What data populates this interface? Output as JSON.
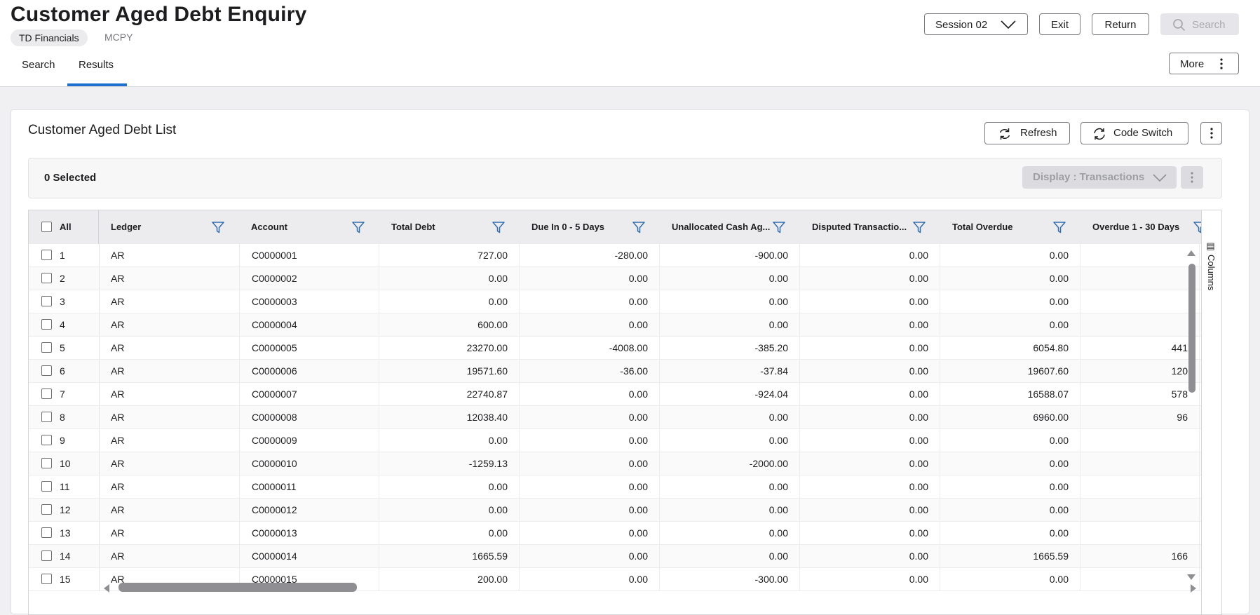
{
  "header": {
    "title": "Customer Aged Debt Enquiry",
    "company": "TD Financials",
    "company_code": "MCPY",
    "tabs": [
      "Search",
      "Results"
    ],
    "session_label": "Session 02",
    "exit_label": "Exit",
    "return_label": "Return",
    "search_label": "Search",
    "more_label": "More"
  },
  "panel": {
    "title": "Customer Aged Debt List",
    "refresh_label": "Refresh",
    "code_switch_label": "Code Switch",
    "selected_text": "0 Selected",
    "display_label": "Display : Transactions",
    "columns_tool_label": "Columns"
  },
  "grid": {
    "all_label": "All",
    "columns": [
      "Ledger",
      "Account",
      "Total Debt",
      "Due In 0 - 5 Days",
      "Unallocated Cash Ag...",
      "Disputed Transactio...",
      "Total Overdue",
      "Overdue 1 - 30 Days"
    ],
    "rows": [
      {
        "n": "1",
        "ledger": "AR",
        "account": "C0000001",
        "total_debt": "727.00",
        "due_0_5": "-280.00",
        "unalloc": "-900.00",
        "disputed": "0.00",
        "total_overdue": "0.00",
        "overdue_1_30": ""
      },
      {
        "n": "2",
        "ledger": "AR",
        "account": "C0000002",
        "total_debt": "0.00",
        "due_0_5": "0.00",
        "unalloc": "0.00",
        "disputed": "0.00",
        "total_overdue": "0.00",
        "overdue_1_30": ""
      },
      {
        "n": "3",
        "ledger": "AR",
        "account": "C0000003",
        "total_debt": "0.00",
        "due_0_5": "0.00",
        "unalloc": "0.00",
        "disputed": "0.00",
        "total_overdue": "0.00",
        "overdue_1_30": ""
      },
      {
        "n": "4",
        "ledger": "AR",
        "account": "C0000004",
        "total_debt": "600.00",
        "due_0_5": "0.00",
        "unalloc": "0.00",
        "disputed": "0.00",
        "total_overdue": "0.00",
        "overdue_1_30": ""
      },
      {
        "n": "5",
        "ledger": "AR",
        "account": "C0000005",
        "total_debt": "23270.00",
        "due_0_5": "-4008.00",
        "unalloc": "-385.20",
        "disputed": "0.00",
        "total_overdue": "6054.80",
        "overdue_1_30": "441"
      },
      {
        "n": "6",
        "ledger": "AR",
        "account": "C0000006",
        "total_debt": "19571.60",
        "due_0_5": "-36.00",
        "unalloc": "-37.84",
        "disputed": "0.00",
        "total_overdue": "19607.60",
        "overdue_1_30": "120"
      },
      {
        "n": "7",
        "ledger": "AR",
        "account": "C0000007",
        "total_debt": "22740.87",
        "due_0_5": "0.00",
        "unalloc": "-924.04",
        "disputed": "0.00",
        "total_overdue": "16588.07",
        "overdue_1_30": "578"
      },
      {
        "n": "8",
        "ledger": "AR",
        "account": "C0000008",
        "total_debt": "12038.40",
        "due_0_5": "0.00",
        "unalloc": "0.00",
        "disputed": "0.00",
        "total_overdue": "6960.00",
        "overdue_1_30": "96"
      },
      {
        "n": "9",
        "ledger": "AR",
        "account": "C0000009",
        "total_debt": "0.00",
        "due_0_5": "0.00",
        "unalloc": "0.00",
        "disputed": "0.00",
        "total_overdue": "0.00",
        "overdue_1_30": ""
      },
      {
        "n": "10",
        "ledger": "AR",
        "account": "C0000010",
        "total_debt": "-1259.13",
        "due_0_5": "0.00",
        "unalloc": "-2000.00",
        "disputed": "0.00",
        "total_overdue": "0.00",
        "overdue_1_30": ""
      },
      {
        "n": "11",
        "ledger": "AR",
        "account": "C0000011",
        "total_debt": "0.00",
        "due_0_5": "0.00",
        "unalloc": "0.00",
        "disputed": "0.00",
        "total_overdue": "0.00",
        "overdue_1_30": ""
      },
      {
        "n": "12",
        "ledger": "AR",
        "account": "C0000012",
        "total_debt": "0.00",
        "due_0_5": "0.00",
        "unalloc": "0.00",
        "disputed": "0.00",
        "total_overdue": "0.00",
        "overdue_1_30": ""
      },
      {
        "n": "13",
        "ledger": "AR",
        "account": "C0000013",
        "total_debt": "0.00",
        "due_0_5": "0.00",
        "unalloc": "0.00",
        "disputed": "0.00",
        "total_overdue": "0.00",
        "overdue_1_30": ""
      },
      {
        "n": "14",
        "ledger": "AR",
        "account": "C0000014",
        "total_debt": "1665.59",
        "due_0_5": "0.00",
        "unalloc": "0.00",
        "disputed": "0.00",
        "total_overdue": "1665.59",
        "overdue_1_30": "166"
      },
      {
        "n": "15",
        "ledger": "AR",
        "account": "C0000015",
        "total_debt": "200.00",
        "due_0_5": "0.00",
        "unalloc": "-300.00",
        "disputed": "0.00",
        "total_overdue": "0.00",
        "overdue_1_30": ""
      }
    ]
  },
  "colors": {
    "accent": "#1f6fd1",
    "filter_icon": "#2f6fb0"
  },
  "icons": [
    "chevron-down-icon",
    "search-icon",
    "more-vertical-icon",
    "refresh-icon",
    "code-switch-icon",
    "filter-icon",
    "columns-icon"
  ]
}
